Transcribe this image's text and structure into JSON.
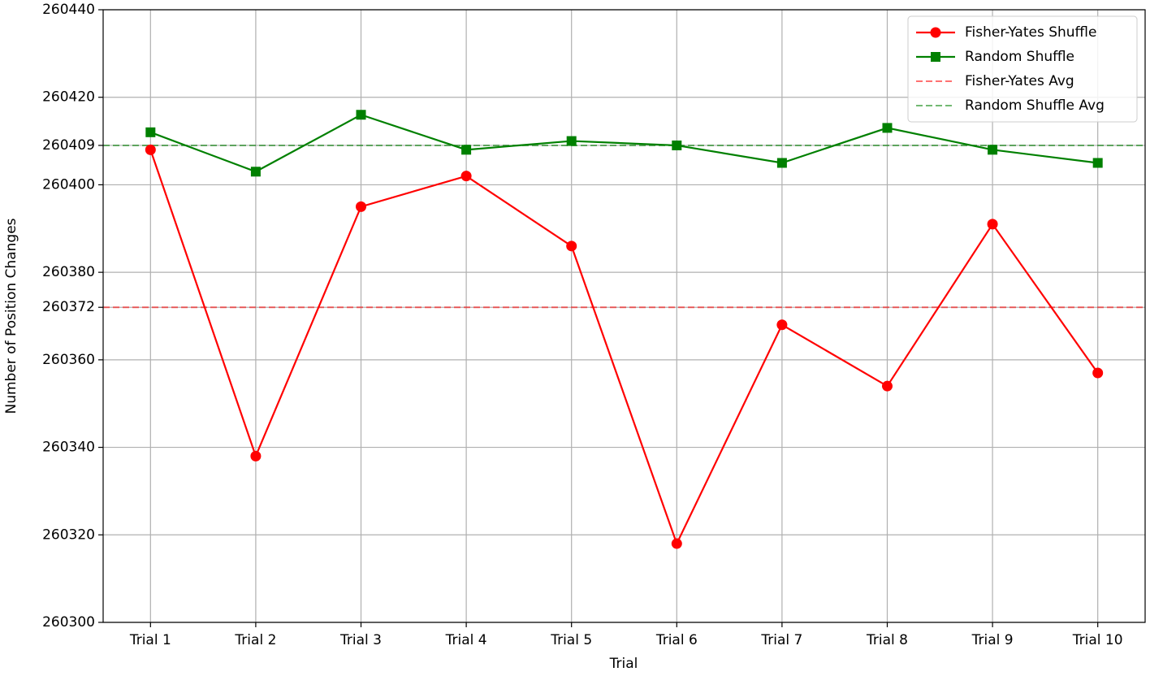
{
  "chart_data": {
    "type": "line",
    "x_label": "Trial",
    "y_label": "Number of Position Changes",
    "categories": [
      "Trial 1",
      "Trial 2",
      "Trial 3",
      "Trial 4",
      "Trial 5",
      "Trial 6",
      "Trial 7",
      "Trial 8",
      "Trial 9",
      "Trial 10"
    ],
    "series": [
      {
        "name": "Fisher-Yates Shuffle",
        "color": "#ff0000",
        "marker": "circle",
        "values": [
          260408,
          260338,
          260395,
          260402,
          260386,
          260318,
          260368,
          260354,
          260391,
          260357
        ]
      },
      {
        "name": "Random Shuffle",
        "color": "#008000",
        "marker": "square",
        "values": [
          260412,
          260403,
          260416,
          260408,
          260410,
          260409,
          260405,
          260413,
          260408,
          260405
        ]
      }
    ],
    "reference_lines": [
      {
        "name": "Fisher-Yates Avg",
        "color": "#ff0000",
        "value": 260372
      },
      {
        "name": "Random Shuffle Avg",
        "color": "#008000",
        "value": 260409
      }
    ],
    "ylim": [
      260300,
      260440
    ],
    "yticks": [
      260300,
      260320,
      260340,
      260360,
      260372,
      260380,
      260400,
      260409,
      260420,
      260440
    ],
    "grid": true,
    "legend": "upper right"
  }
}
